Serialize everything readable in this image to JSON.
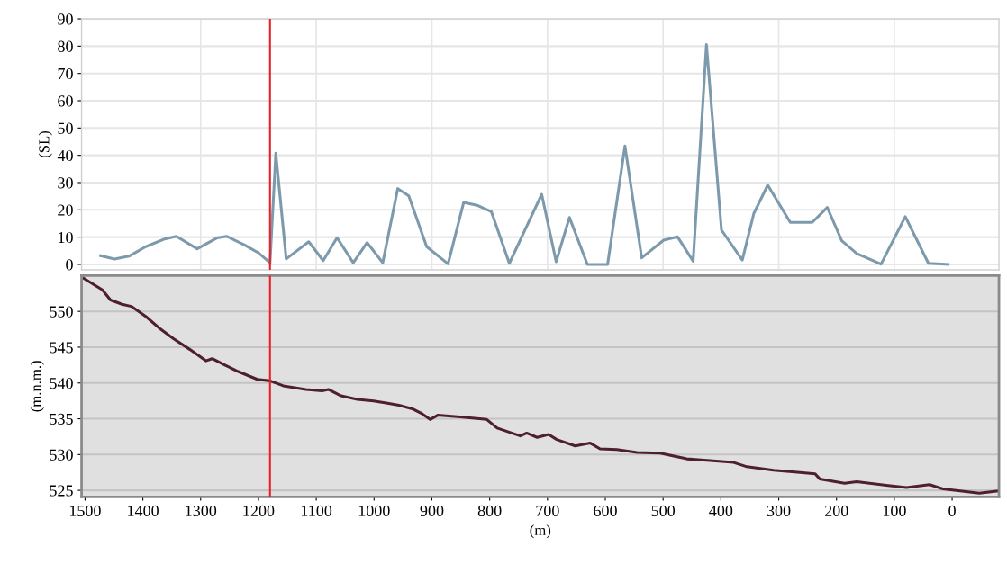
{
  "chart_data": [
    {
      "type": "line",
      "ylabel": "(SL)",
      "xlim": [
        1506,
        -81
      ],
      "xticks": [
        {
          "value": 1300,
          "label": null
        },
        {
          "value": 1100,
          "label": null
        },
        {
          "value": 900,
          "label": null
        },
        {
          "value": 700,
          "label": null
        },
        {
          "value": 500,
          "label": null
        },
        {
          "value": 300,
          "label": null
        },
        {
          "value": 100,
          "label": null
        }
      ],
      "ylim": [
        -2,
        90
      ],
      "yticks": [
        0,
        10,
        20,
        30,
        40,
        50,
        60,
        70,
        80,
        90
      ],
      "tick_labels": "y",
      "grid": true,
      "marker": "none",
      "line_style": "solid",
      "ref_lines": [
        {
          "axis": "x",
          "value": 1180,
          "color": "#e8202a"
        }
      ],
      "series": [
        {
          "color": "#7d9aad",
          "x": [
            1473,
            1449,
            1424,
            1395,
            1364,
            1342,
            1306,
            1272,
            1255,
            1224,
            1199,
            1180,
            1170,
            1152,
            1113,
            1088,
            1064,
            1036,
            1012,
            985,
            959,
            940,
            909,
            872,
            845,
            822,
            797,
            766,
            710,
            685,
            662,
            631,
            596,
            566,
            537,
            499,
            475,
            448,
            425,
            399,
            363,
            343,
            319,
            280,
            242,
            216,
            191,
            165,
            123,
            81,
            41,
            7
          ],
          "values": [
            3.2,
            2.0,
            3.0,
            6.5,
            9.2,
            10.3,
            5.7,
            9.7,
            10.3,
            7.1,
            4.1,
            0.6,
            40.8,
            2.0,
            8.3,
            1.4,
            9.8,
            0.6,
            8.0,
            0.6,
            27.8,
            25.1,
            6.5,
            0.2,
            22.7,
            21.7,
            19.3,
            0.4,
            25.7,
            1.0,
            17.2,
            0,
            0,
            43.4,
            2.4,
            8.9,
            10.1,
            1.2,
            80.6,
            12.6,
            1.6,
            18.7,
            29.1,
            15.4,
            15.4,
            20.9,
            8.7,
            4.0,
            0.1,
            17.5,
            0.4,
            0
          ]
        }
      ]
    },
    {
      "type": "line",
      "xlabel": "(m)",
      "ylabel": "(m.n.m.)",
      "xlim": [
        1506,
        -81
      ],
      "xticks": [
        1500,
        1400,
        1300,
        1200,
        1100,
        1000,
        900,
        800,
        700,
        600,
        500,
        400,
        300,
        200,
        100,
        0
      ],
      "ylim": [
        524.1,
        555.0
      ],
      "yticks": [
        525,
        530,
        535,
        540,
        545,
        550
      ],
      "grid": "y",
      "marker": "none",
      "line_style": "solid",
      "ref_lines": [
        {
          "axis": "x",
          "value": 1180,
          "color": "#e8202a"
        }
      ],
      "series": [
        {
          "color": "#4e1f2c",
          "x": [
            1502,
            1470,
            1456,
            1436,
            1420,
            1395,
            1369,
            1347,
            1319,
            1291,
            1280,
            1258,
            1235,
            1202,
            1180,
            1157,
            1118,
            1090,
            1079,
            1057,
            1029,
            1001,
            979,
            957,
            934,
            917,
            903,
            890,
            856,
            805,
            787,
            747,
            736,
            718,
            698,
            684,
            652,
            626,
            609,
            580,
            545,
            505,
            459,
            424,
            378,
            355,
            309,
            263,
            237,
            229,
            186,
            165,
            114,
            79,
            39,
            16,
            -47,
            -78
          ],
          "values": [
            554.6,
            553.0,
            551.6,
            551.0,
            550.7,
            549.3,
            547.5,
            546.2,
            544.7,
            543.1,
            543.4,
            542.5,
            541.6,
            540.5,
            540.3,
            539.6,
            539.1,
            538.9,
            539.1,
            538.2,
            537.7,
            537.5,
            537.2,
            536.9,
            536.4,
            535.7,
            534.9,
            535.5,
            535.3,
            534.9,
            533.7,
            532.6,
            533.0,
            532.4,
            532.8,
            532.1,
            531.2,
            531.6,
            530.8,
            530.7,
            530.3,
            530.2,
            529.4,
            529.2,
            528.9,
            528.3,
            527.8,
            527.5,
            527.3,
            526.6,
            526.0,
            526.2,
            525.7,
            525.4,
            525.8,
            525.2,
            524.6,
            524.9
          ]
        }
      ]
    }
  ]
}
